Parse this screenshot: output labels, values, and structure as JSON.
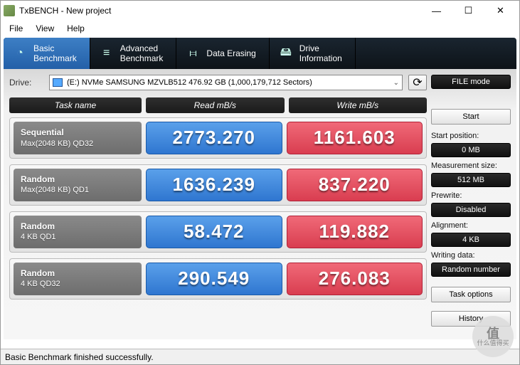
{
  "window": {
    "title": "TxBENCH - New project"
  },
  "menu": {
    "file": "File",
    "view": "View",
    "help": "Help"
  },
  "wincontrols": {
    "min": "—",
    "max": "☐",
    "close": "✕"
  },
  "tabs": [
    {
      "icon": "◔",
      "line1": "Basic",
      "line2": "Benchmark",
      "active": true
    },
    {
      "icon": "≡",
      "line1": "Advanced",
      "line2": "Benchmark",
      "active": false
    },
    {
      "icon": "⧦",
      "line1": "Data Erasing",
      "line2": "",
      "active": false
    },
    {
      "icon": "🖴",
      "line1": "Drive",
      "line2": "Information",
      "active": false
    }
  ],
  "drive": {
    "label": "Drive:",
    "selected": "(E:) NVMe SAMSUNG MZVLB512  476.92 GB (1,000,179,712 Sectors)",
    "refresh_icon": "⟳"
  },
  "headers": {
    "c1": "Task name",
    "c2": "Read mB/s",
    "c3": "Write mB/s"
  },
  "rows": [
    {
      "name": "Sequential",
      "detail": "Max(2048 KB) QD32",
      "read": "2773.270",
      "write": "1161.603"
    },
    {
      "name": "Random",
      "detail": "Max(2048 KB) QD1",
      "read": "1636.239",
      "write": "837.220"
    },
    {
      "name": "Random",
      "detail": "4 KB QD1",
      "read": "58.472",
      "write": "119.882"
    },
    {
      "name": "Random",
      "detail": "4 KB QD32",
      "read": "290.549",
      "write": "276.083"
    }
  ],
  "side": {
    "filemode": "FILE mode",
    "start": "Start",
    "start_pos_label": "Start position:",
    "start_pos_value": "0 MB",
    "meas_label": "Measurement size:",
    "meas_value": "512 MB",
    "prewrite_label": "Prewrite:",
    "prewrite_value": "Disabled",
    "align_label": "Alignment:",
    "align_value": "4 KB",
    "wdata_label": "Writing data:",
    "wdata_value": "Random number",
    "taskopt": "Task options",
    "history": "History"
  },
  "status": "Basic Benchmark finished successfully.",
  "colors": {
    "read_bg": "#3a82d8",
    "write_bg": "#e04a5c",
    "task_bg": "#7a7a7a",
    "header_bg": "#222",
    "tab_active": "#2f6fb8"
  },
  "watermark": {
    "big": "值",
    "sub": "什么值得买"
  }
}
